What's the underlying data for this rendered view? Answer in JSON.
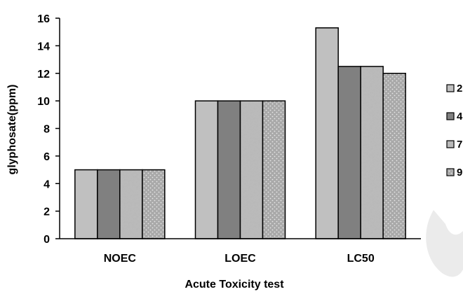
{
  "chart_data": {
    "type": "bar",
    "categories": [
      "NOEC",
      "LOEC",
      "LC50"
    ],
    "series": [
      {
        "name": "2",
        "values": [
          5,
          10,
          15.3
        ],
        "color": "#c0c0c0",
        "pattern": "solid"
      },
      {
        "name": "4",
        "values": [
          5,
          10,
          12.5
        ],
        "color": "#808080",
        "pattern": "solid"
      },
      {
        "name": "7",
        "values": [
          5,
          10,
          12.5
        ],
        "color": "#b5b5b5",
        "pattern": "granite"
      },
      {
        "name": "9",
        "values": [
          5,
          10,
          12.0
        ],
        "color": "#a8a8a8",
        "pattern": "dots"
      }
    ],
    "title": "",
    "xlabel": "Acute Toxicity test",
    "ylabel": "glyphosate(ppm)",
    "ylim": [
      0,
      16
    ],
    "yticks": [
      "0",
      "2",
      "4",
      "6",
      "8",
      "10",
      "12",
      "14",
      "16"
    ],
    "grid": false,
    "legend_position": "right"
  }
}
